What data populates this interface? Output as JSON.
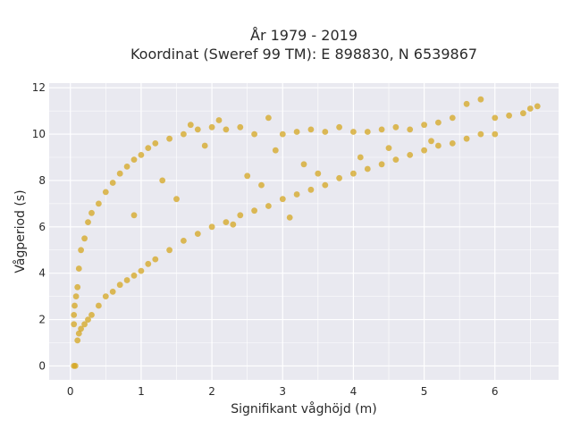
{
  "chart_data": {
    "type": "scatter",
    "title": [
      "År 1979 - 2019",
      "Koordinat (Sweref 99 TM): E 898830, N 6539867"
    ],
    "xlabel": "Signifikant våghöjd (m)",
    "ylabel": "Vågperiod (s)",
    "xlim": [
      -0.3,
      6.9
    ],
    "ylim": [
      -0.6,
      12.2
    ],
    "xticks": [
      0,
      1,
      2,
      3,
      4,
      5,
      6
    ],
    "yticks": [
      0,
      2,
      4,
      6,
      8,
      10,
      12
    ],
    "grid": true,
    "legend": "none",
    "colors": {
      "marker": "#d4a520",
      "plot_bg": "#e9e9f0",
      "grid": "#ffffff"
    },
    "points": [
      [
        0.05,
        0.0
      ],
      [
        0.07,
        0.0
      ],
      [
        0.05,
        1.8
      ],
      [
        0.05,
        2.2
      ],
      [
        0.06,
        2.6
      ],
      [
        0.08,
        3.0
      ],
      [
        0.1,
        1.1
      ],
      [
        0.1,
        3.4
      ],
      [
        0.12,
        1.4
      ],
      [
        0.12,
        4.2
      ],
      [
        0.15,
        1.6
      ],
      [
        0.15,
        5.0
      ],
      [
        0.2,
        1.8
      ],
      [
        0.2,
        5.5
      ],
      [
        0.25,
        2.0
      ],
      [
        0.25,
        6.2
      ],
      [
        0.3,
        2.2
      ],
      [
        0.3,
        6.6
      ],
      [
        0.4,
        2.6
      ],
      [
        0.4,
        7.0
      ],
      [
        0.5,
        3.0
      ],
      [
        0.5,
        7.5
      ],
      [
        0.6,
        3.2
      ],
      [
        0.6,
        7.9
      ],
      [
        0.7,
        3.5
      ],
      [
        0.7,
        8.3
      ],
      [
        0.8,
        3.7
      ],
      [
        0.8,
        8.6
      ],
      [
        0.9,
        3.9
      ],
      [
        0.9,
        8.9
      ],
      [
        1.0,
        4.1
      ],
      [
        1.0,
        9.1
      ],
      [
        1.1,
        4.4
      ],
      [
        1.1,
        9.4
      ],
      [
        1.2,
        4.6
      ],
      [
        1.2,
        9.6
      ],
      [
        1.4,
        5.0
      ],
      [
        1.4,
        9.8
      ],
      [
        1.6,
        5.4
      ],
      [
        1.6,
        10.0
      ],
      [
        1.7,
        10.4
      ],
      [
        1.8,
        5.7
      ],
      [
        1.8,
        10.2
      ],
      [
        2.0,
        6.0
      ],
      [
        2.0,
        10.3
      ],
      [
        2.1,
        10.6
      ],
      [
        2.2,
        6.2
      ],
      [
        2.2,
        10.2
      ],
      [
        2.4,
        6.5
      ],
      [
        2.4,
        10.3
      ],
      [
        2.6,
        6.7
      ],
      [
        2.6,
        10.0
      ],
      [
        2.8,
        6.9
      ],
      [
        2.8,
        10.7
      ],
      [
        3.0,
        7.2
      ],
      [
        3.0,
        10.0
      ],
      [
        3.2,
        7.4
      ],
      [
        3.2,
        10.1
      ],
      [
        3.4,
        7.6
      ],
      [
        3.4,
        10.2
      ],
      [
        3.6,
        7.8
      ],
      [
        3.6,
        10.1
      ],
      [
        3.8,
        8.1
      ],
      [
        3.8,
        10.3
      ],
      [
        4.0,
        8.3
      ],
      [
        4.0,
        10.1
      ],
      [
        4.2,
        8.5
      ],
      [
        4.2,
        10.1
      ],
      [
        4.4,
        8.7
      ],
      [
        4.4,
        10.2
      ],
      [
        4.6,
        8.9
      ],
      [
        4.6,
        10.3
      ],
      [
        4.8,
        9.1
      ],
      [
        4.8,
        10.2
      ],
      [
        5.0,
        9.3
      ],
      [
        5.0,
        10.4
      ],
      [
        5.2,
        9.5
      ],
      [
        5.2,
        10.5
      ],
      [
        5.4,
        9.6
      ],
      [
        5.4,
        10.7
      ],
      [
        5.6,
        9.8
      ],
      [
        5.6,
        11.3
      ],
      [
        5.8,
        10.0
      ],
      [
        5.8,
        11.5
      ],
      [
        6.0,
        10.0
      ],
      [
        6.0,
        10.7
      ],
      [
        6.2,
        10.8
      ],
      [
        6.4,
        10.9
      ],
      [
        6.5,
        11.1
      ],
      [
        6.6,
        11.2
      ],
      [
        1.3,
        8.0
      ],
      [
        1.5,
        7.2
      ],
      [
        2.5,
        8.2
      ],
      [
        3.3,
        8.7
      ],
      [
        0.9,
        6.5
      ],
      [
        2.7,
        7.8
      ],
      [
        3.1,
        6.4
      ],
      [
        2.3,
        6.1
      ],
      [
        3.5,
        8.3
      ],
      [
        4.1,
        9.0
      ],
      [
        4.5,
        9.4
      ],
      [
        5.1,
        9.7
      ],
      [
        1.9,
        9.5
      ],
      [
        2.9,
        9.3
      ]
    ]
  }
}
